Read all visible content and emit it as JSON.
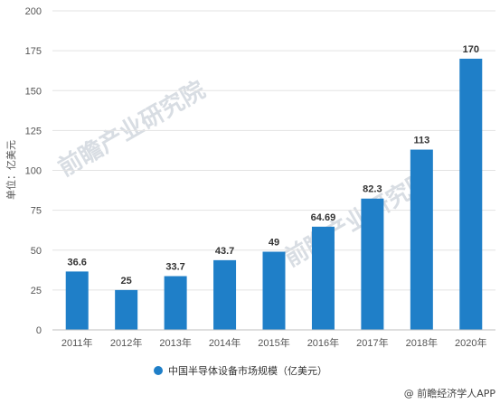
{
  "watermark": "前瞻产业研究院",
  "source": "@ 前瞻经济学人APP",
  "chart_data": {
    "type": "bar",
    "categories": [
      "2011年",
      "2012年",
      "2013年",
      "2014年",
      "2015年",
      "2016年",
      "2017年",
      "2018年",
      "2020年"
    ],
    "series": [
      {
        "name": "中国半导体设备市场规模（亿美元）",
        "values": [
          36.6,
          25,
          33.7,
          43.7,
          49,
          64.69,
          82.3,
          113,
          170
        ],
        "labels": [
          "36.6",
          "25",
          "33.7",
          "43.7",
          "49",
          "64.69",
          "82.3",
          "113",
          "170"
        ],
        "color": "#1f7fc8"
      }
    ],
    "title": "",
    "xlabel": "",
    "ylabel": "单位：亿美元",
    "ylim": [
      0,
      200
    ],
    "yticks": [
      0,
      25,
      50,
      75,
      100,
      125,
      150,
      175,
      200
    ],
    "grid": true,
    "legend_position": "bottom"
  }
}
